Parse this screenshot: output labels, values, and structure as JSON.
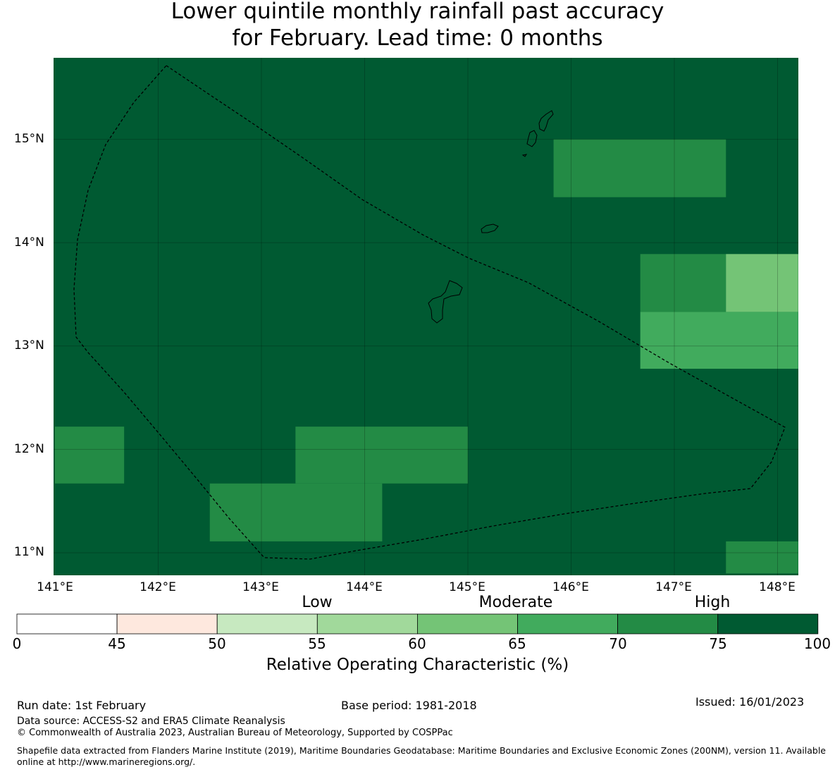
{
  "title": {
    "line1": "Lower quintile monthly rainfall past accuracy",
    "line2": "for February. Lead time: 0 months"
  },
  "map": {
    "latitude_labels": [
      "15°N",
      "14°N",
      "13°N",
      "12°N",
      "11°N"
    ],
    "longitude_labels": [
      "141°E",
      "142°E",
      "143°E",
      "144°E",
      "145°E",
      "146°E",
      "147°E",
      "148°E"
    ],
    "base_color": "#005a32",
    "cells": [
      {
        "lon": [
          145.83,
          147.5
        ],
        "lat": [
          14.44,
          15.0
        ],
        "roc": 72
      },
      {
        "lon": [
          146.67,
          147.5
        ],
        "lat": [
          13.33,
          13.89
        ],
        "roc": 72
      },
      {
        "lon": [
          147.5,
          148.2
        ],
        "lat": [
          13.33,
          13.89
        ],
        "roc": 62
      },
      {
        "lon": [
          146.67,
          148.2
        ],
        "lat": [
          12.78,
          13.33
        ],
        "roc": 67
      },
      {
        "lon": [
          141.0,
          141.67
        ],
        "lat": [
          11.67,
          12.22
        ],
        "roc": 72
      },
      {
        "lon": [
          143.33,
          145.0
        ],
        "lat": [
          11.67,
          12.22
        ],
        "roc": 72
      },
      {
        "lon": [
          142.5,
          144.17
        ],
        "lat": [
          11.11,
          11.67
        ],
        "roc": 72
      },
      {
        "lon": [
          147.5,
          148.2
        ],
        "lat": [
          10.8,
          11.11
        ],
        "roc": 72
      }
    ]
  },
  "colorbar": {
    "categories": [
      "Low",
      "Moderate",
      "High"
    ],
    "ticks": [
      "0",
      "45",
      "50",
      "55",
      "60",
      "65",
      "70",
      "75",
      "100"
    ],
    "colors": [
      "#ffffff",
      "#fee8de",
      "#c7e9c0",
      "#a1d99b",
      "#74c476",
      "#41ab5d",
      "#238b45",
      "#005a32"
    ],
    "label": "Relative Operating Characteristic (%)"
  },
  "footer": {
    "run_date": "Run date: 1st February",
    "base_period": "Base period: 1981-2018",
    "issued": "Issued: 16/01/2023",
    "data_source": "Data source: ACCESS-S2 and ERA5 Climate Reanalysis",
    "copyright": "© Commonwealth of Australia 2023, Australian Bureau of Meteorology, Supported by COSPPac",
    "shapefile": "Shapefile data extracted from Flanders Marine Institute (2019), Maritime Boundaries Geodatabase: Maritime Boundaries and Exclusive Economic Zones (200NM), version 11. Available online at http://www.marineregions.org/."
  }
}
